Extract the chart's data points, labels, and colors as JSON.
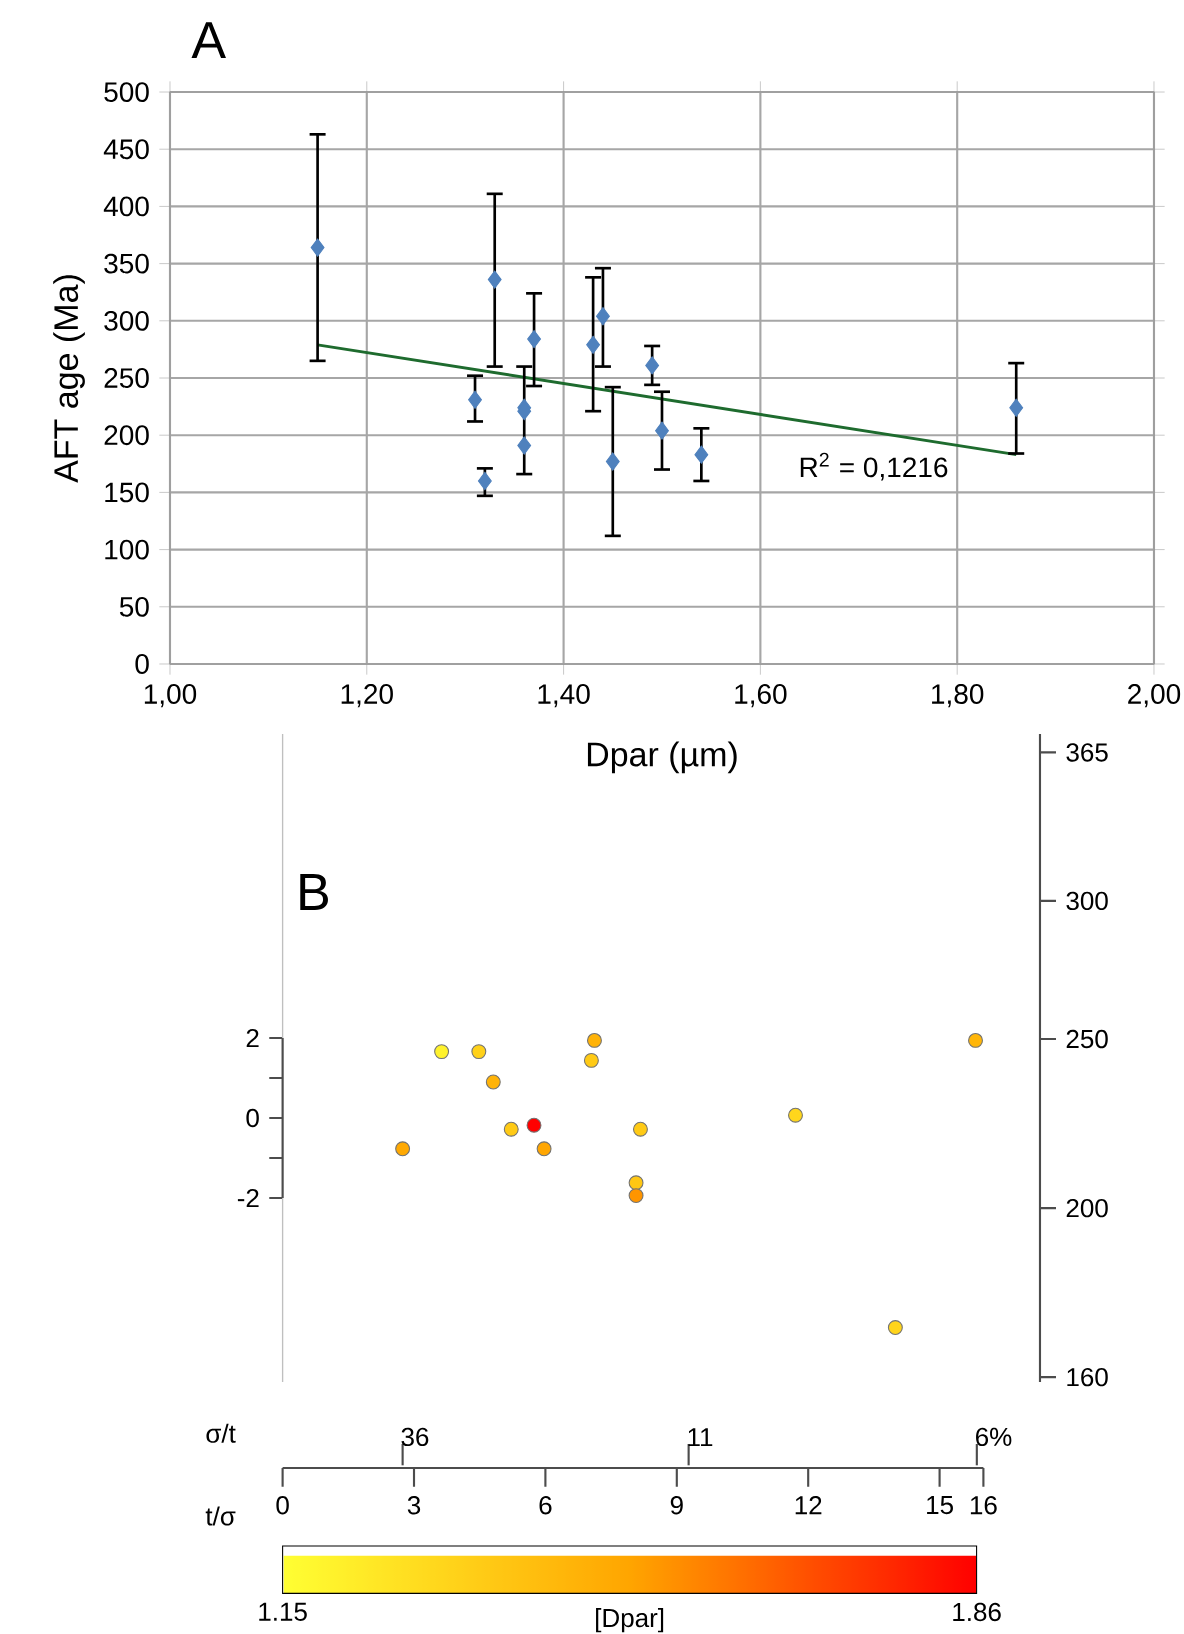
{
  "chart_data": [
    {
      "type": "scatter",
      "title": "A",
      "xlabel": "Dpar (µm)",
      "ylabel": "AFT age (Ma)",
      "xlim": [
        1.0,
        2.0
      ],
      "xticks": [
        {
          "value": 1.0,
          "label": "1,00"
        },
        {
          "value": 1.2,
          "label": "1,20"
        },
        {
          "value": 1.4,
          "label": "1,40"
        },
        {
          "value": 1.6,
          "label": "1,60"
        },
        {
          "value": 1.8,
          "label": "1,80"
        },
        {
          "value": 2.0,
          "label": "2,00"
        }
      ],
      "ylim": [
        0,
        500
      ],
      "yticks": [
        0,
        50,
        100,
        150,
        200,
        250,
        300,
        350,
        400,
        450,
        500
      ],
      "grid": true,
      "marker": "diamond",
      "series": [
        {
          "color": "#4f81bd",
          "x": [
            1.15,
            1.31,
            1.32,
            1.33,
            1.36,
            1.36,
            1.36,
            1.37,
            1.43,
            1.44,
            1.45,
            1.49,
            1.5,
            1.54,
            1.86
          ],
          "values": [
            364,
            231,
            160,
            336,
            224,
            221,
            191,
            284,
            279,
            304,
            177,
            261,
            204,
            183,
            224
          ],
          "errors": [
            [
              265,
              463
            ],
            [
              212,
              252
            ],
            [
              147,
              171
            ],
            [
              260,
              411
            ],
            [
              166,
              260
            ],
            null,
            null,
            [
              243,
              324
            ],
            [
              221,
              338
            ],
            [
              260,
              346
            ],
            [
              112,
              242
            ],
            [
              244,
              278
            ],
            [
              170,
              238
            ],
            [
              160,
              206
            ],
            [
              184,
              263
            ]
          ]
        },
        {
          "type": "line",
          "marker": "none",
          "color": "#1e6b2e",
          "x": [
            1.15,
            1.86
          ],
          "values": [
            279,
            183
          ]
        }
      ],
      "annotations": [
        "R$^{2}$ = 0,1216"
      ]
    },
    {
      "type": "scatter",
      "title": "B",
      "xlabel": "t/σ",
      "x2label": "σ/t",
      "clabel": "[Dpar]",
      "x": [
        3.63,
        4.48,
        4.81,
        7.12,
        7.05,
        5.22,
        5.74,
        5.97,
        2.74,
        8.17,
        8.07,
        8.07,
        11.71,
        15.82,
        13.99
      ],
      "values": [
        1.66,
        1.66,
        0.9,
        1.94,
        1.44,
        -0.28,
        -0.18,
        -0.77,
        -0.77,
        -0.28,
        -1.62,
        -1.94,
        0.07,
        1.94,
        -5.24
      ],
      "cvalues": [
        1.2,
        1.33,
        1.45,
        1.45,
        1.36,
        1.36,
        1.86,
        1.5,
        1.49,
        1.36,
        1.37,
        1.54,
        1.31,
        1.44,
        1.32
      ],
      "xlim": [
        0,
        16
      ],
      "xticks": [
        0,
        3,
        6,
        9,
        12,
        15,
        16
      ],
      "annotations": [
        "36",
        "11",
        "6%"
      ],
      "ylim": [
        -6.6,
        9.6
      ],
      "yticks": [
        -2,
        {
          "value": -1,
          "label": null
        },
        0,
        {
          "value": 1,
          "label": null
        },
        2
      ],
      "y2lim": [
        159,
        374
      ],
      "y2ticks": [
        160,
        200,
        250,
        300,
        365
      ],
      "log": "y2",
      "clim": [
        1.15,
        1.86
      ],
      "cticks": [
        1.15,
        1.86
      ],
      "marker": "circle"
    }
  ]
}
